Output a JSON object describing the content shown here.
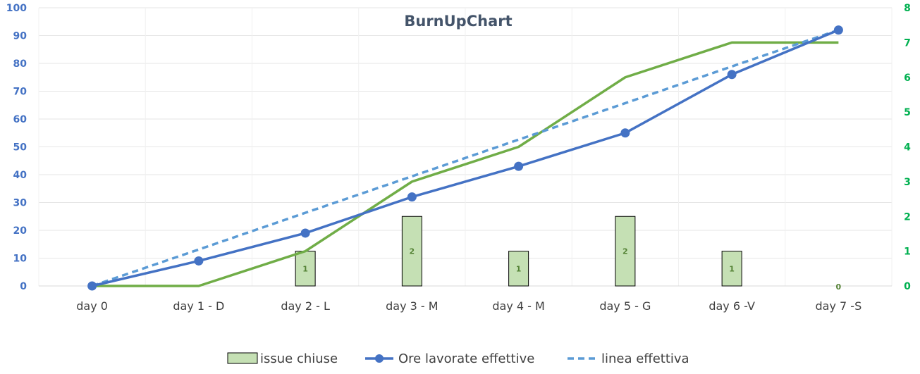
{
  "chart_data": {
    "type": "bar+line",
    "title": "BurnUpChart",
    "categories": [
      "day 0",
      "day 1 - D",
      "day 2 - L",
      "day 3 - M",
      "day 4 - M",
      "day 5 - G",
      "day 6 -V",
      "day 7 -S"
    ],
    "y_left": {
      "min": 0,
      "max": 100,
      "step": 10
    },
    "y_right": {
      "min": 0,
      "max": 8,
      "step": 1
    },
    "series": [
      {
        "name": "issue chiuse",
        "kind": "bar",
        "axis": "right",
        "color": "#c5e0b4",
        "edge": "#000000",
        "values": [
          null,
          null,
          1,
          2,
          1,
          2,
          1,
          0
        ],
        "labels": [
          "",
          "",
          "1",
          "2",
          "1",
          "2",
          "1",
          "0"
        ]
      },
      {
        "name": "Ore lavorate effettive",
        "kind": "line-markers",
        "axis": "left",
        "color": "#4472c4",
        "values": [
          0,
          9,
          19,
          32,
          43,
          55,
          76,
          92
        ]
      },
      {
        "name": "linea effettiva",
        "kind": "dashed-line",
        "axis": "left",
        "color": "#5b9bd5",
        "values": [
          0,
          13.1,
          26.3,
          39.4,
          52.6,
          65.7,
          78.9,
          92
        ]
      },
      {
        "kind": "line",
        "axis": "right",
        "color": "#70ad47",
        "values": [
          0,
          0,
          1,
          3,
          4,
          6,
          7,
          7
        ]
      }
    ],
    "grid": true,
    "legend": "bottom"
  }
}
